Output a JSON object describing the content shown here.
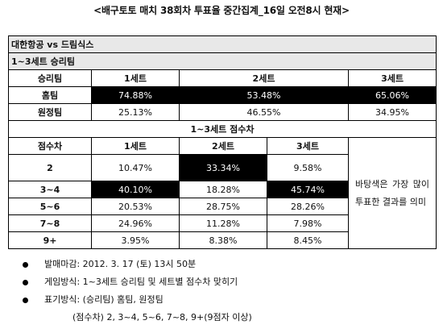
{
  "title": "<배구토토 매치 38회차 투표율 중간집계_16일 오전8시 현재>",
  "match": "대한항공 vs 드림식스",
  "section1": {
    "title": "1~3세트 승리팀",
    "headers": [
      "승리팀",
      "1세트",
      "2세트",
      "3세트"
    ],
    "rows": [
      {
        "label": "홈팀",
        "values": [
          "74.88%",
          "53.48%",
          "65.06%"
        ]
      },
      {
        "label": "원정팀",
        "values": [
          "25.13%",
          "46.55%",
          "34.95%"
        ]
      }
    ]
  },
  "section2": {
    "title": "1~3세트 점수차",
    "headers": [
      "점수차",
      "1세트",
      "2세트",
      "3세트"
    ],
    "rows": [
      {
        "label": "2",
        "values": [
          "10.47%",
          "33.34%",
          "9.58%"
        ]
      },
      {
        "label": "3~4",
        "values": [
          "40.10%",
          "18.28%",
          "45.74%"
        ]
      },
      {
        "label": "5~6",
        "values": [
          "20.53%",
          "28.75%",
          "28.26%"
        ]
      },
      {
        "label": "7~8",
        "values": [
          "24.96%",
          "11.28%",
          "7.98%"
        ]
      },
      {
        "label": "9+",
        "values": [
          "3.95%",
          "8.38%",
          "8.45%"
        ]
      }
    ],
    "note": "바탕색은 가장 많이 투표한 결과를 의미"
  },
  "bullets": [
    "발매마감: 2012. 3. 17 (토) 13시 50분",
    "게임방식: 1~3세트 승리팀 및 세트별 점수차 맞히기",
    "표기방식: (승리팀) 홈팀, 원정팀"
  ],
  "bullet_continuation": "(점수차) 2, 3~4, 5~6, 7~8, 9+(9점자 이상)",
  "colors": {
    "highlight": "#000000",
    "highlight_text": "#ffffff",
    "section_bg": "#e8e8e8"
  }
}
